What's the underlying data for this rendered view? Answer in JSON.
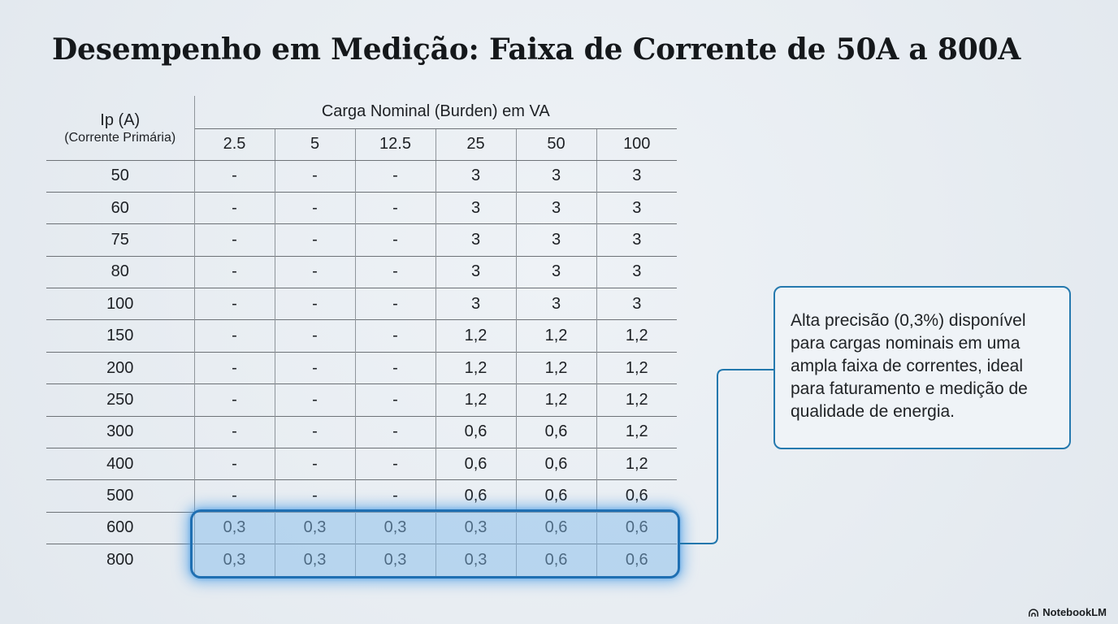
{
  "title": "Desempenho em Medição: Faixa de Corrente de 50A a 800A",
  "chart_data": {
    "type": "table",
    "title": "Desempenho em Medição: Faixa de Corrente de 50A a 800A",
    "row_header": {
      "line1": "Ip (A)",
      "line2": "(Corrente Primária)"
    },
    "column_group_label": "Carga Nominal (Burden) em VA",
    "columns": [
      "2.5",
      "5",
      "12.5",
      "25",
      "50",
      "100"
    ],
    "rows": [
      {
        "ip": "50",
        "values": [
          "-",
          "-",
          "-",
          "3",
          "3",
          "3"
        ],
        "highlighted": false
      },
      {
        "ip": "60",
        "values": [
          "-",
          "-",
          "-",
          "3",
          "3",
          "3"
        ],
        "highlighted": false
      },
      {
        "ip": "75",
        "values": [
          "-",
          "-",
          "-",
          "3",
          "3",
          "3"
        ],
        "highlighted": false
      },
      {
        "ip": "80",
        "values": [
          "-",
          "-",
          "-",
          "3",
          "3",
          "3"
        ],
        "highlighted": false
      },
      {
        "ip": "100",
        "values": [
          "-",
          "-",
          "-",
          "3",
          "3",
          "3"
        ],
        "highlighted": false
      },
      {
        "ip": "150",
        "values": [
          "-",
          "-",
          "-",
          "1,2",
          "1,2",
          "1,2"
        ],
        "highlighted": false
      },
      {
        "ip": "200",
        "values": [
          "-",
          "-",
          "-",
          "1,2",
          "1,2",
          "1,2"
        ],
        "highlighted": false
      },
      {
        "ip": "250",
        "values": [
          "-",
          "-",
          "-",
          "1,2",
          "1,2",
          "1,2"
        ],
        "highlighted": false
      },
      {
        "ip": "300",
        "values": [
          "-",
          "-",
          "-",
          "0,6",
          "0,6",
          "1,2"
        ],
        "highlighted": false
      },
      {
        "ip": "400",
        "values": [
          "-",
          "-",
          "-",
          "0,6",
          "0,6",
          "1,2"
        ],
        "highlighted": false
      },
      {
        "ip": "500",
        "values": [
          "-",
          "-",
          "-",
          "0,6",
          "0,6",
          "0,6"
        ],
        "highlighted": false
      },
      {
        "ip": "600",
        "values": [
          "0,3",
          "0,3",
          "0,3",
          "0,3",
          "0,6",
          "0,6"
        ],
        "highlighted": true
      },
      {
        "ip": "800",
        "values": [
          "0,3",
          "0,3",
          "0,3",
          "0,3",
          "0,6",
          "0,6"
        ],
        "highlighted": true
      }
    ]
  },
  "callout": {
    "text": "Alta precisão (0,3%) disponível para cargas nominais em uma ampla faixa de correntes, ideal para faturamento e medição de qualidade de energia."
  },
  "branding": {
    "logo_text": "NotebookLM"
  },
  "colors": {
    "background": "#e8edf2",
    "text": "#1d2024",
    "accent_blue": "#2277ad",
    "callout_border": "#2579ae",
    "highlight_border": "#1f6fb2",
    "highlight_fill": "rgba(130,185,235,0.48)",
    "grid_line_horizontal": "#6d7277",
    "grid_line_vertical": "#8f959b"
  }
}
